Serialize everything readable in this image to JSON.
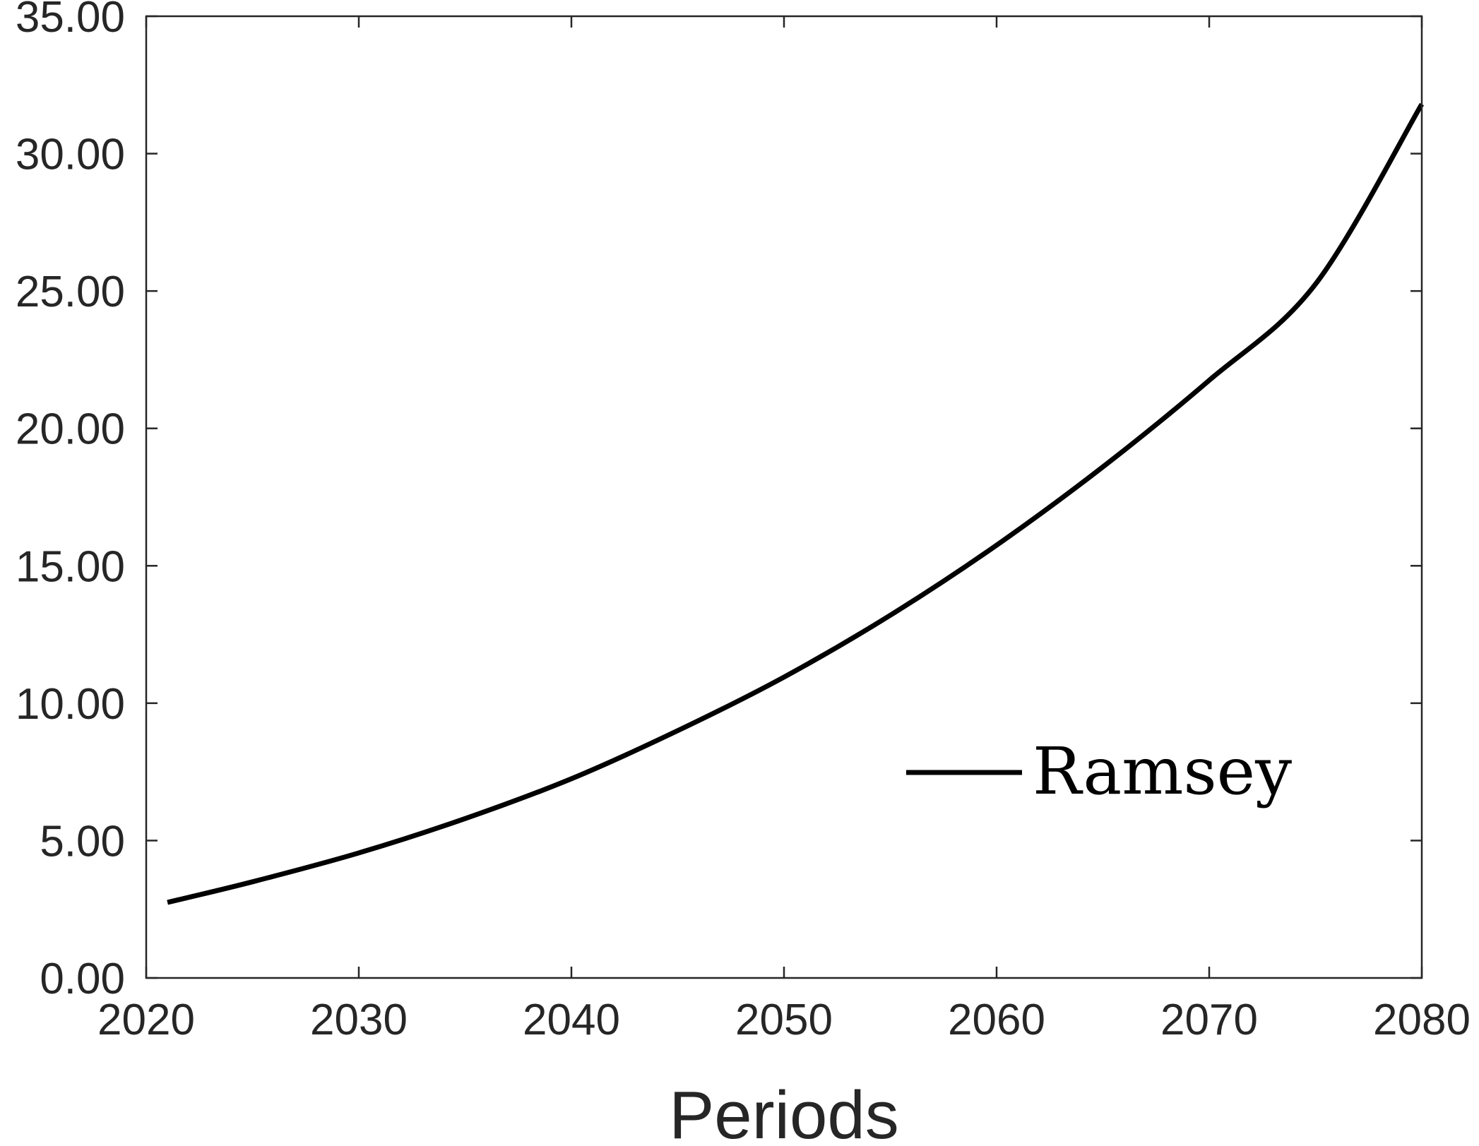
{
  "chart_data": {
    "type": "line",
    "title": "",
    "xlabel": "Periods",
    "ylabel": "",
    "xlim": [
      2020,
      2080
    ],
    "ylim": [
      0,
      35
    ],
    "xticks": [
      "2020",
      "2030",
      "2040",
      "2050",
      "2060",
      "2070",
      "2080"
    ],
    "yticks": [
      "0.00",
      "5.00",
      "10.00",
      "15.00",
      "20.00",
      "25.00",
      "30.00",
      "35.00"
    ],
    "grid": false,
    "legend_position": "lower-right",
    "series": [
      {
        "name": "Ramsey",
        "color": "#000000",
        "x": [
          2021,
          2025,
          2030,
          2035,
          2040,
          2045,
          2050,
          2055,
          2060,
          2065,
          2070,
          2075,
          2080
        ],
        "y": [
          2.75,
          3.5,
          4.55,
          5.8,
          7.25,
          9.0,
          10.95,
          13.2,
          15.75,
          18.6,
          21.75,
          25.25,
          31.8
        ]
      }
    ]
  }
}
